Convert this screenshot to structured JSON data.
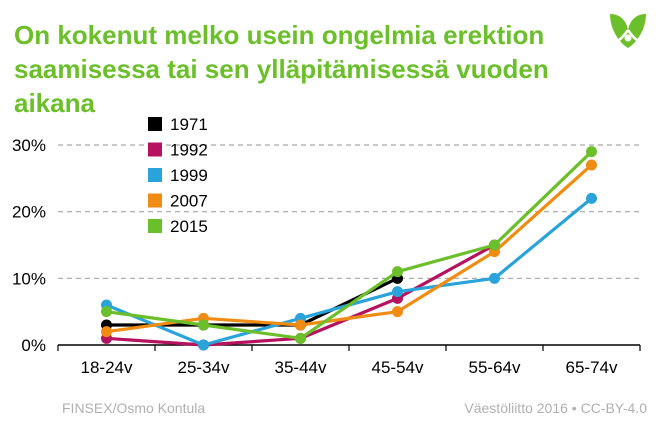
{
  "title": "On kokenut melko usein ongelmia erektion saamisessa tai sen ylläpitämisessä vuoden aikana",
  "footer": {
    "source": "FINSEX/Osmo Kontula",
    "credit": "Väestöliitto 2016 • CC-BY-4.0"
  },
  "logo_icon": "vaestoliitto-leaf-logo",
  "colors": {
    "title": "#6bbf2b",
    "grid": "#a6a6a6"
  },
  "chart_data": {
    "type": "line",
    "title": "On kokenut melko usein ongelmia erektion saamisessa tai sen ylläpitämisessä vuoden aikana",
    "xlabel": "",
    "ylabel": "",
    "categories": [
      "18-24v",
      "25-34v",
      "35-44v",
      "45-54v",
      "55-64v",
      "65-74v"
    ],
    "ylim": [
      0,
      30
    ],
    "yticks": [
      "0%",
      "10%",
      "20%",
      "30%"
    ],
    "ytick_values": [
      0,
      10,
      20,
      30
    ],
    "grid": true,
    "legend_position": "top-left",
    "series": [
      {
        "name": "1971",
        "color": "#000000",
        "values": [
          3,
          3,
          3,
          10,
          null,
          null
        ]
      },
      {
        "name": "1992",
        "color": "#b5135f",
        "values": [
          1,
          0,
          1,
          7,
          15,
          null
        ]
      },
      {
        "name": "1999",
        "color": "#2aa3db",
        "values": [
          6,
          0,
          4,
          8,
          10,
          22
        ]
      },
      {
        "name": "2007",
        "color": "#f08c12",
        "values": [
          2,
          4,
          3,
          5,
          14,
          27
        ]
      },
      {
        "name": "2015",
        "color": "#6bbf2b",
        "values": [
          5,
          3,
          1,
          11,
          15,
          29
        ]
      }
    ]
  }
}
